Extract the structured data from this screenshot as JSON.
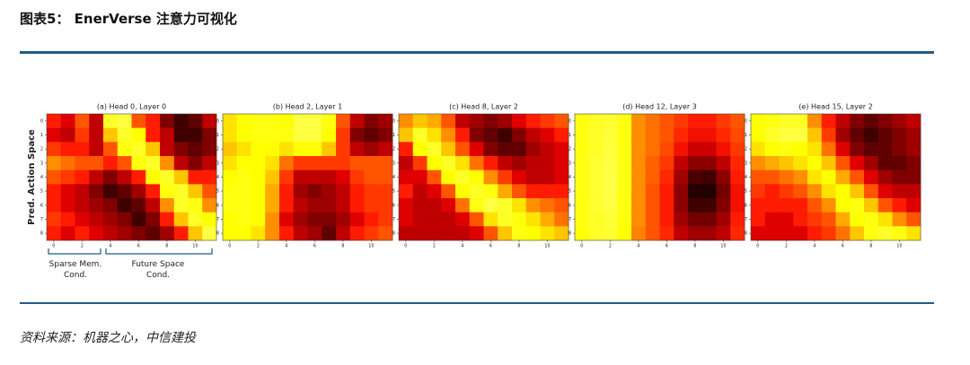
{
  "header": {
    "title": "图表5： EnerVerse 注意力可视化"
  },
  "chart_data": [
    {
      "type": "heatmap",
      "title": "(a) Head 0, Layer 0",
      "ylabel": "Pred. Action Space",
      "annotations": [
        "Sparse Mem. Cond.",
        "Future Space Cond."
      ],
      "xticks": [
        0,
        2,
        4,
        6,
        8,
        10
      ],
      "yticks": [
        0,
        1,
        2,
        3,
        4,
        5,
        6,
        7,
        8
      ],
      "values": [
        [
          0.4,
          0.35,
          0.5,
          0.3,
          0.9,
          0.95,
          0.5,
          0.4,
          0.2,
          0.1,
          0.15,
          0.3
        ],
        [
          0.35,
          0.3,
          0.45,
          0.3,
          0.7,
          0.9,
          0.8,
          0.4,
          0.3,
          0.1,
          0.1,
          0.2
        ],
        [
          0.45,
          0.4,
          0.4,
          0.3,
          0.5,
          0.85,
          0.9,
          0.7,
          0.3,
          0.2,
          0.15,
          0.2
        ],
        [
          0.6,
          0.55,
          0.5,
          0.5,
          0.4,
          0.5,
          0.85,
          0.9,
          0.6,
          0.3,
          0.2,
          0.3
        ],
        [
          0.5,
          0.45,
          0.4,
          0.3,
          0.2,
          0.3,
          0.4,
          0.8,
          0.9,
          0.7,
          0.4,
          0.4
        ],
        [
          0.4,
          0.35,
          0.3,
          0.2,
          0.1,
          0.15,
          0.25,
          0.4,
          0.85,
          0.9,
          0.7,
          0.5
        ],
        [
          0.4,
          0.35,
          0.3,
          0.25,
          0.2,
          0.1,
          0.15,
          0.3,
          0.6,
          0.9,
          0.85,
          0.6
        ],
        [
          0.45,
          0.4,
          0.35,
          0.3,
          0.25,
          0.2,
          0.1,
          0.2,
          0.4,
          0.7,
          0.9,
          0.8
        ],
        [
          0.4,
          0.35,
          0.4,
          0.35,
          0.3,
          0.25,
          0.2,
          0.15,
          0.25,
          0.4,
          0.7,
          0.95
        ]
      ]
    },
    {
      "type": "heatmap",
      "title": "(b) Head 2, Layer 1",
      "xticks": [
        0,
        2,
        4,
        6,
        8,
        10
      ],
      "yticks": [
        0,
        1,
        2,
        3,
        4,
        5,
        6,
        7,
        8
      ],
      "values": [
        [
          0.75,
          0.8,
          0.85,
          0.85,
          0.8,
          0.95,
          0.95,
          0.85,
          0.5,
          0.3,
          0.2,
          0.25
        ],
        [
          0.75,
          0.8,
          0.85,
          0.85,
          0.85,
          0.95,
          0.95,
          0.8,
          0.45,
          0.2,
          0.15,
          0.2
        ],
        [
          0.7,
          0.75,
          0.8,
          0.8,
          0.75,
          0.8,
          0.8,
          0.7,
          0.45,
          0.3,
          0.25,
          0.3
        ],
        [
          0.75,
          0.8,
          0.8,
          0.75,
          0.55,
          0.45,
          0.45,
          0.45,
          0.45,
          0.5,
          0.5,
          0.5
        ],
        [
          0.8,
          0.85,
          0.8,
          0.7,
          0.45,
          0.3,
          0.3,
          0.3,
          0.35,
          0.45,
          0.5,
          0.5
        ],
        [
          0.85,
          0.85,
          0.8,
          0.65,
          0.4,
          0.25,
          0.2,
          0.25,
          0.3,
          0.4,
          0.45,
          0.45
        ],
        [
          0.85,
          0.85,
          0.8,
          0.65,
          0.4,
          0.3,
          0.25,
          0.25,
          0.3,
          0.4,
          0.45,
          0.45
        ],
        [
          0.8,
          0.85,
          0.8,
          0.6,
          0.35,
          0.25,
          0.2,
          0.2,
          0.25,
          0.35,
          0.4,
          0.45
        ],
        [
          0.8,
          0.8,
          0.75,
          0.6,
          0.4,
          0.3,
          0.25,
          0.15,
          0.3,
          0.4,
          0.45,
          0.5
        ]
      ]
    },
    {
      "type": "heatmap",
      "title": "(c) Head 8, Layer 2",
      "xticks": [
        0,
        2,
        4,
        6,
        8,
        10
      ],
      "yticks": [
        0,
        1,
        2,
        3,
        4,
        5,
        6,
        7,
        8
      ],
      "values": [
        [
          0.6,
          0.7,
          0.65,
          0.5,
          0.3,
          0.25,
          0.2,
          0.25,
          0.35,
          0.4,
          0.45,
          0.5
        ],
        [
          0.7,
          0.9,
          0.75,
          0.6,
          0.4,
          0.2,
          0.15,
          0.1,
          0.2,
          0.3,
          0.35,
          0.4
        ],
        [
          0.4,
          0.8,
          0.9,
          0.7,
          0.5,
          0.35,
          0.2,
          0.15,
          0.15,
          0.25,
          0.3,
          0.35
        ],
        [
          0.3,
          0.45,
          0.8,
          0.9,
          0.75,
          0.55,
          0.4,
          0.3,
          0.25,
          0.3,
          0.3,
          0.35
        ],
        [
          0.35,
          0.35,
          0.5,
          0.8,
          0.9,
          0.8,
          0.6,
          0.45,
          0.35,
          0.3,
          0.3,
          0.35
        ],
        [
          0.4,
          0.3,
          0.35,
          0.5,
          0.8,
          0.9,
          0.85,
          0.65,
          0.5,
          0.4,
          0.4,
          0.4
        ],
        [
          0.35,
          0.3,
          0.3,
          0.35,
          0.55,
          0.85,
          0.95,
          0.9,
          0.75,
          0.6,
          0.55,
          0.5
        ],
        [
          0.35,
          0.3,
          0.3,
          0.3,
          0.35,
          0.5,
          0.75,
          0.9,
          0.85,
          0.75,
          0.65,
          0.55
        ],
        [
          0.3,
          0.3,
          0.3,
          0.3,
          0.3,
          0.35,
          0.5,
          0.7,
          0.85,
          0.8,
          0.75,
          0.7
        ]
      ]
    },
    {
      "type": "heatmap",
      "title": "(d) Head 12, Layer 3",
      "xticks": [
        0,
        2,
        4,
        6,
        8,
        10
      ],
      "yticks": [
        0,
        1,
        2,
        3,
        4,
        5,
        6,
        7,
        8
      ],
      "values": [
        [
          0.85,
          0.9,
          0.92,
          0.85,
          0.6,
          0.55,
          0.5,
          0.45,
          0.4,
          0.4,
          0.45,
          0.5
        ],
        [
          0.85,
          0.9,
          0.93,
          0.85,
          0.6,
          0.55,
          0.5,
          0.42,
          0.38,
          0.38,
          0.42,
          0.48
        ],
        [
          0.85,
          0.9,
          0.94,
          0.86,
          0.6,
          0.55,
          0.48,
          0.38,
          0.32,
          0.32,
          0.38,
          0.45
        ],
        [
          0.86,
          0.92,
          0.95,
          0.86,
          0.6,
          0.52,
          0.45,
          0.3,
          0.22,
          0.22,
          0.3,
          0.42
        ],
        [
          0.86,
          0.92,
          0.96,
          0.86,
          0.6,
          0.52,
          0.42,
          0.25,
          0.12,
          0.1,
          0.22,
          0.4
        ],
        [
          0.86,
          0.92,
          0.96,
          0.86,
          0.6,
          0.5,
          0.4,
          0.22,
          0.06,
          0.05,
          0.18,
          0.38
        ],
        [
          0.85,
          0.92,
          0.95,
          0.85,
          0.6,
          0.5,
          0.4,
          0.22,
          0.1,
          0.1,
          0.2,
          0.38
        ],
        [
          0.85,
          0.9,
          0.93,
          0.85,
          0.6,
          0.5,
          0.4,
          0.25,
          0.18,
          0.18,
          0.25,
          0.4
        ],
        [
          0.84,
          0.9,
          0.92,
          0.84,
          0.58,
          0.5,
          0.42,
          0.3,
          0.25,
          0.25,
          0.3,
          0.42
        ]
      ]
    },
    {
      "type": "heatmap",
      "title": "(e) Head 15, Layer 2",
      "xticks": [
        0,
        2,
        4,
        6,
        8,
        10
      ],
      "yticks": [
        0,
        1,
        2,
        3,
        4,
        5,
        6,
        7,
        8
      ],
      "values": [
        [
          0.8,
          0.85,
          0.9,
          0.9,
          0.6,
          0.4,
          0.3,
          0.2,
          0.15,
          0.2,
          0.25,
          0.3
        ],
        [
          0.8,
          0.9,
          0.95,
          0.95,
          0.7,
          0.45,
          0.25,
          0.15,
          0.1,
          0.15,
          0.2,
          0.25
        ],
        [
          0.75,
          0.8,
          0.85,
          0.8,
          0.75,
          0.55,
          0.35,
          0.2,
          0.15,
          0.15,
          0.2,
          0.25
        ],
        [
          0.6,
          0.65,
          0.7,
          0.75,
          0.8,
          0.7,
          0.5,
          0.35,
          0.25,
          0.15,
          0.15,
          0.2
        ],
        [
          0.5,
          0.5,
          0.55,
          0.6,
          0.75,
          0.8,
          0.65,
          0.5,
          0.35,
          0.25,
          0.2,
          0.2
        ],
        [
          0.45,
          0.4,
          0.45,
          0.5,
          0.6,
          0.75,
          0.8,
          0.7,
          0.5,
          0.35,
          0.3,
          0.3
        ],
        [
          0.4,
          0.4,
          0.4,
          0.4,
          0.5,
          0.6,
          0.8,
          0.85,
          0.7,
          0.5,
          0.4,
          0.35
        ],
        [
          0.4,
          0.35,
          0.35,
          0.4,
          0.45,
          0.5,
          0.65,
          0.8,
          0.85,
          0.75,
          0.6,
          0.5
        ],
        [
          0.35,
          0.35,
          0.35,
          0.35,
          0.4,
          0.45,
          0.55,
          0.7,
          0.85,
          0.9,
          0.85,
          0.75
        ]
      ]
    }
  ],
  "source": "资料来源：机器之心，中信建投"
}
